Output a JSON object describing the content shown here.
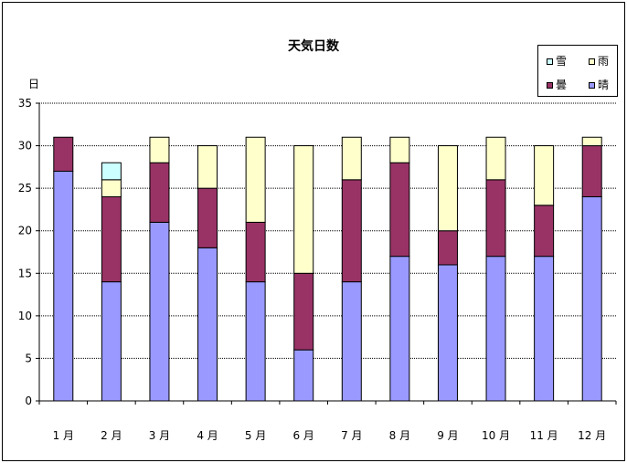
{
  "chart_data": {
    "type": "bar",
    "stacked": true,
    "title": "天気日数",
    "ylabel": "日",
    "xlabel": "",
    "ylim": [
      0,
      35
    ],
    "yticks": [
      0,
      5,
      10,
      15,
      20,
      25,
      30,
      35
    ],
    "grid": true,
    "legend_position": "top-right",
    "categories": [
      "1 月",
      "2 月",
      "3 月",
      "4 月",
      "5 月",
      "6 月",
      "7 月",
      "8 月",
      "9 月",
      "10 月",
      "11 月",
      "12 月"
    ],
    "series": [
      {
        "name": "晴",
        "color": "#9999ff",
        "values": [
          27,
          14,
          21,
          18,
          14,
          6,
          14,
          17,
          16,
          17,
          17,
          24
        ]
      },
      {
        "name": "曇",
        "color": "#993366",
        "values": [
          4,
          10,
          7,
          7,
          7,
          9,
          12,
          11,
          4,
          9,
          6,
          6
        ]
      },
      {
        "name": "雨",
        "color": "#ffffcc",
        "values": [
          0,
          2,
          3,
          5,
          10,
          15,
          5,
          3,
          10,
          5,
          7,
          1
        ]
      },
      {
        "name": "雪",
        "color": "#ccffff",
        "values": [
          0,
          2,
          0,
          0,
          0,
          0,
          0,
          0,
          0,
          0,
          0,
          0
        ]
      }
    ]
  },
  "legend": {
    "items": [
      {
        "label": "雪",
        "color": "#ccffff"
      },
      {
        "label": "雨",
        "color": "#ffffcc"
      },
      {
        "label": "曇",
        "color": "#993366"
      },
      {
        "label": "晴",
        "color": "#9999ff"
      }
    ]
  }
}
